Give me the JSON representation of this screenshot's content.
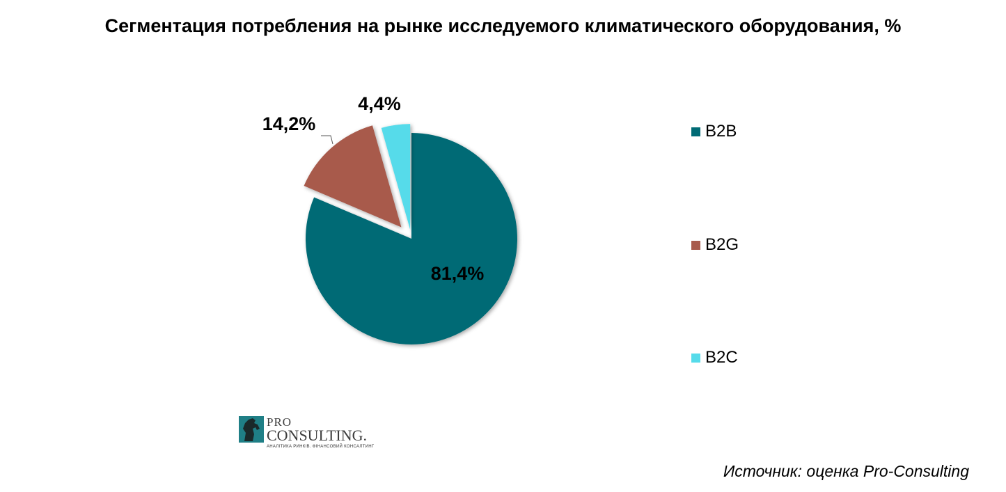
{
  "chart_data": {
    "type": "pie",
    "title": "Сегментация потребления на рынке исследуемого климатического оборудования, %",
    "categories": [
      "B2B",
      "B2G",
      "B2C"
    ],
    "values": [
      81.4,
      14.2,
      4.4
    ],
    "data_labels": [
      "81,4%",
      "14,2%",
      "4,4%"
    ],
    "colors": [
      "#006b75",
      "#a85a4c",
      "#56dbea"
    ],
    "exploded": [
      "B2G",
      "B2C"
    ],
    "legend_position": "right"
  },
  "logo": {
    "line1": "PRO",
    "line2": "CONSULTING.",
    "tagline": "АНАЛІТИКА РИНКІВ. ФІНАНСОВИЙ КОНСАЛТИНГ"
  },
  "source": "Источник: оценка Pro-Consulting"
}
